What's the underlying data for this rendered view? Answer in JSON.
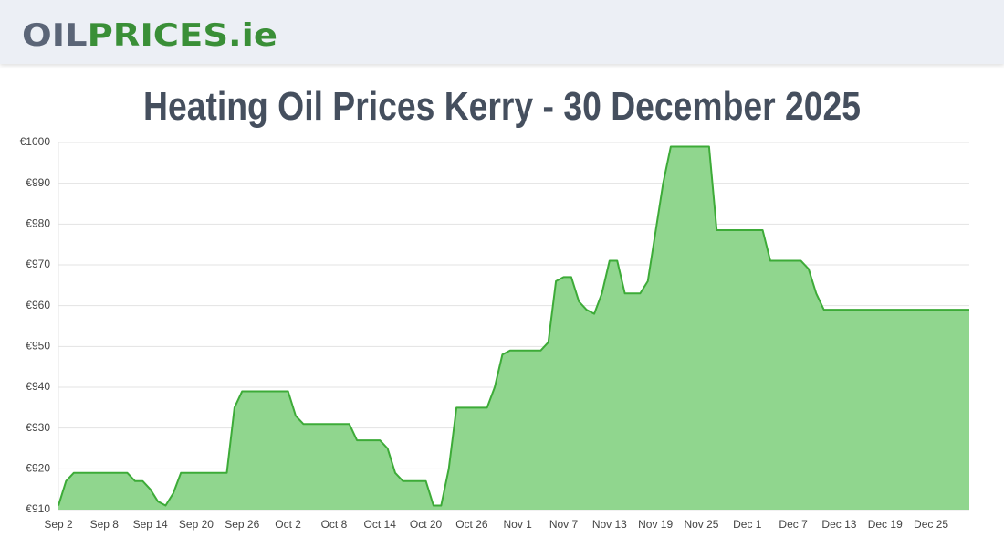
{
  "header": {
    "logo": [
      "OIL",
      "PRICES",
      ".ie"
    ]
  },
  "chart_data": {
    "type": "area",
    "title": "Heating Oil Prices Kerry - 30 December 2025",
    "categories": [
      "Sep 2",
      null,
      null,
      null,
      null,
      null,
      "Sep 8",
      null,
      null,
      null,
      null,
      null,
      "Sep 14",
      null,
      null,
      null,
      null,
      null,
      "Sep 20",
      null,
      null,
      null,
      null,
      null,
      "Sep 26",
      null,
      null,
      null,
      null,
      null,
      "Oct 2",
      null,
      null,
      null,
      null,
      null,
      "Oct 8",
      null,
      null,
      null,
      null,
      null,
      "Oct 14",
      null,
      null,
      null,
      null,
      null,
      "Oct 20",
      null,
      null,
      null,
      null,
      null,
      "Oct 26",
      null,
      null,
      null,
      null,
      null,
      "Nov 1",
      null,
      null,
      null,
      null,
      null,
      "Nov 7",
      null,
      null,
      null,
      null,
      null,
      "Nov 13",
      null,
      null,
      null,
      null,
      null,
      "Nov 19",
      null,
      null,
      null,
      null,
      null,
      "Nov 25",
      null,
      null,
      null,
      null,
      null,
      "Dec 1",
      null,
      null,
      null,
      null,
      null,
      "Dec 7",
      null,
      null,
      null,
      null,
      null,
      "Dec 13",
      null,
      null,
      null,
      null,
      null,
      "Dec 19",
      null,
      null,
      null,
      null,
      null,
      "Dec 25",
      null,
      null,
      null,
      null,
      null
    ],
    "values": [
      911,
      917,
      919,
      919,
      919,
      919,
      919,
      919,
      919,
      919,
      917,
      917,
      915,
      912,
      911,
      914,
      919,
      919,
      919,
      919,
      919,
      919,
      919,
      935,
      939,
      939,
      939,
      939,
      939,
      939,
      939,
      933,
      931,
      931,
      931,
      931,
      931,
      931,
      931,
      927,
      927,
      927,
      927,
      925,
      919,
      917,
      917,
      917,
      917,
      911,
      911,
      920,
      935,
      935,
      935,
      935,
      935,
      940,
      948,
      949,
      949,
      949,
      949,
      949,
      951,
      966,
      967,
      967,
      961,
      959,
      958,
      963,
      971,
      971,
      963,
      963,
      963,
      966,
      978,
      990,
      999,
      999,
      999,
      999,
      999,
      999,
      978.5,
      978.5,
      978.5,
      978.5,
      978.5,
      978.5,
      978.5,
      971,
      971,
      971,
      971,
      971,
      969,
      963,
      959,
      959,
      959,
      959,
      959,
      959,
      959,
      959,
      959,
      959,
      959,
      959,
      959,
      959,
      959,
      959,
      959,
      959,
      959,
      959
    ],
    "color": "#3dab38",
    "fill_color": "#90d68e",
    "ylim": [
      910,
      1000
    ],
    "yticks": [
      {
        "value": 910,
        "label": "€910"
      },
      {
        "value": 920,
        "label": "€920"
      },
      {
        "value": 930,
        "label": "€930"
      },
      {
        "value": 940,
        "label": "€940"
      },
      {
        "value": 950,
        "label": "€950"
      },
      {
        "value": 960,
        "label": "€960"
      },
      {
        "value": 970,
        "label": "€970"
      },
      {
        "value": 980,
        "label": "€980"
      },
      {
        "value": 990,
        "label": "€990"
      },
      {
        "value": 1000,
        "label": "€1000"
      }
    ],
    "grid": true
  }
}
